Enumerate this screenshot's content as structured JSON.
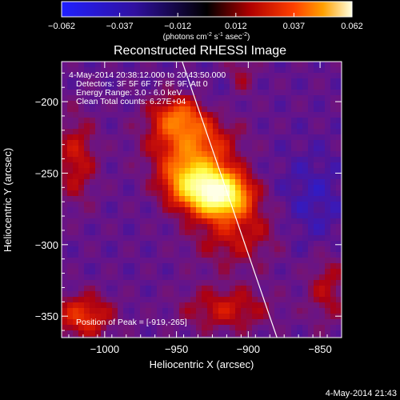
{
  "colorbar": {
    "ticks": [
      "-0.062",
      "-0.037",
      "-0.012",
      "0.012",
      "0.037",
      "0.062"
    ],
    "units_prefix": "(photons cm",
    "units_exp1": "-2",
    "units_mid": " s",
    "units_exp2": "-1",
    "units_mid2": " asec",
    "units_exp3": "-2",
    "units_suffix": ")"
  },
  "title": "Reconstructed RHESSI Image",
  "overlay": {
    "time_range": "4-May-2014 20:38:12.000 to 20:43:50.000",
    "detectors": "Detectors: 3F 5F 6F 7F 8F 9F, Att 0",
    "energy": "Energy Range: 3.0 - 6.0 keV",
    "clean": "Clean    Total counts: 6.27E+04",
    "peak": "Position of Peak = [-919,-265]"
  },
  "footer_timestamp": "4-May-2014 21:43",
  "chart_data": {
    "type": "heatmap",
    "title": "Reconstructed RHESSI Image",
    "xlabel": "Heliocentric X (arcsec)",
    "ylabel": "Heliocentric Y (arcsec)",
    "xlim": [
      -1030,
      -835
    ],
    "ylim": [
      -365,
      -172
    ],
    "x_ticks": [
      -1000,
      -950,
      -900,
      -850
    ],
    "x_tick_labels": [
      "−1000",
      "−950",
      "−900",
      "−850"
    ],
    "y_ticks": [
      -350,
      -300,
      -250,
      -200
    ],
    "y_tick_labels": [
      "−350",
      "−300",
      "−250",
      "−200"
    ],
    "colorbar_range": [
      -0.062,
      0.062
    ],
    "peak": [
      -919,
      -265
    ],
    "limb_line": [
      [
        -946,
        -172
      ],
      [
        -880,
        -365
      ]
    ],
    "colors": {
      "background": "#000000",
      "low": "#0000ff",
      "zero": "#000000",
      "mid": "#ff2000",
      "high": "#ffff60",
      "limb": "#ffffff"
    }
  }
}
